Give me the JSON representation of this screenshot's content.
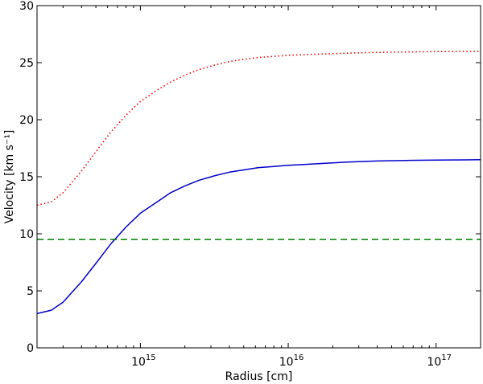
{
  "chart_data": {
    "type": "line",
    "xlabel": "Radius [cm]",
    "ylabel": "Velocity [km s⁻¹]",
    "xscale": "log",
    "xlim": [
      200000000000000.0,
      2e+17
    ],
    "ylim": [
      0,
      30
    ],
    "grid": false,
    "legend": "none",
    "yticks": [
      {
        "value": 0,
        "label": "0"
      },
      {
        "value": 5,
        "label": "5"
      },
      {
        "value": 10,
        "label": "10"
      },
      {
        "value": 15,
        "label": "15"
      },
      {
        "value": 20,
        "label": "20"
      },
      {
        "value": 25,
        "label": "25"
      },
      {
        "value": 30,
        "label": "30"
      }
    ],
    "xticks": [
      {
        "value": 1000000000000000.0,
        "base": "10",
        "exp": "15"
      },
      {
        "value": 1e+16,
        "base": "10",
        "exp": "16"
      },
      {
        "value": 1e+17,
        "base": "10",
        "exp": "17"
      }
    ],
    "series": [
      {
        "color": "#0000cc",
        "linestyle": "solid",
        "x": [
          200000000000000.0,
          250000000000000.0,
          300000000000000.0,
          400000000000000.0,
          500000000000000.0,
          630000000000000.0,
          800000000000000.0,
          1000000000000000.0,
          1300000000000000.0,
          1600000000000000.0,
          2000000000000000.0,
          2500000000000000.0,
          3200000000000000.0,
          4000000000000000.0,
          5000000000000000.0,
          6300000000000000.0,
          8000000000000000.0,
          1e+16,
          1.6e+16,
          2.5e+16,
          4e+16,
          6.3e+16,
          1e+17,
          1.6e+17,
          2e+17
        ],
        "y": [
          3.0,
          3.3,
          4.0,
          5.8,
          7.4,
          9.1,
          10.6,
          11.8,
          12.8,
          13.6,
          14.2,
          14.7,
          15.1,
          15.4,
          15.6,
          15.8,
          15.9,
          16.0,
          16.15,
          16.28,
          16.38,
          16.43,
          16.46,
          16.48,
          16.5
        ]
      },
      {
        "color": "#ff0000",
        "linestyle": "dotted",
        "x": [
          200000000000000.0,
          250000000000000.0,
          300000000000000.0,
          400000000000000.0,
          500000000000000.0,
          630000000000000.0,
          800000000000000.0,
          1000000000000000.0,
          1300000000000000.0,
          1600000000000000.0,
          2000000000000000.0,
          2500000000000000.0,
          3200000000000000.0,
          4000000000000000.0,
          5000000000000000.0,
          6300000000000000.0,
          8000000000000000.0,
          1e+16,
          1.6e+16,
          2.5e+16,
          4e+16,
          6.3e+16,
          1e+17,
          1.6e+17,
          2e+17
        ],
        "y": [
          12.5,
          12.8,
          13.6,
          15.5,
          17.2,
          18.9,
          20.4,
          21.6,
          22.6,
          23.3,
          23.9,
          24.4,
          24.8,
          25.1,
          25.3,
          25.45,
          25.55,
          25.65,
          25.75,
          25.83,
          25.9,
          25.94,
          25.97,
          25.99,
          26.0
        ]
      },
      {
        "color": "#008000",
        "linestyle": "dashed",
        "x": [
          200000000000000.0,
          2e+17
        ],
        "y": [
          9.5,
          9.5
        ]
      }
    ]
  }
}
